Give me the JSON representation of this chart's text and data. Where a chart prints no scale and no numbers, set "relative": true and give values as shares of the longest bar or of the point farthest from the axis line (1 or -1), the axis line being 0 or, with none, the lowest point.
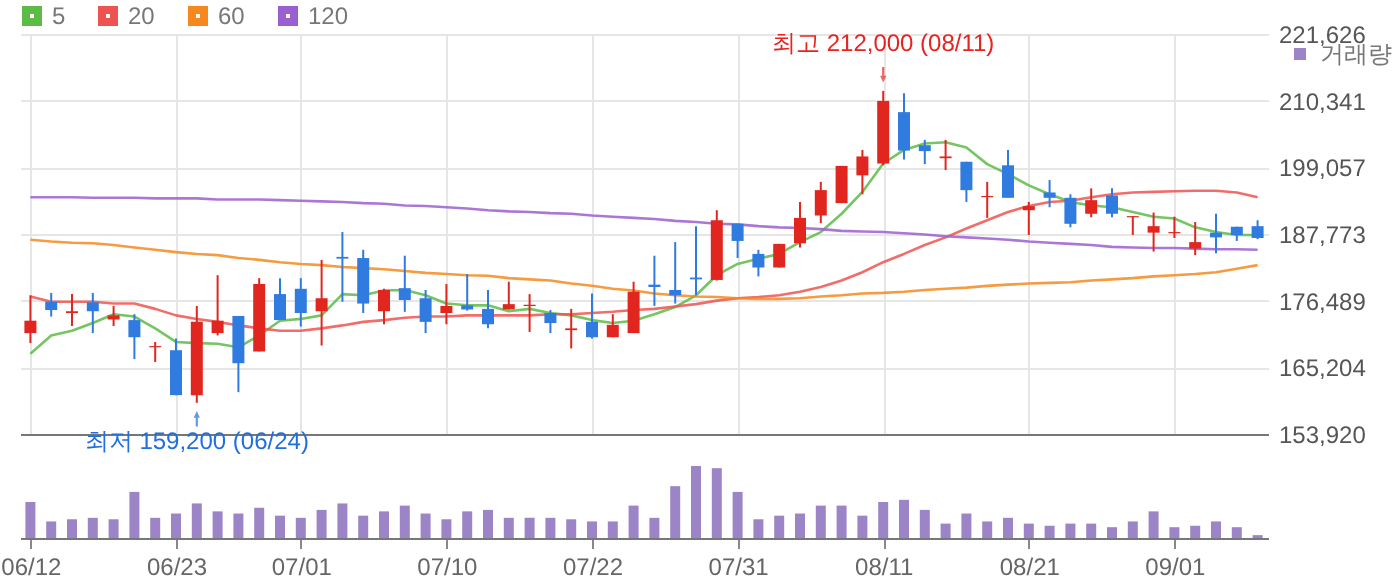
{
  "chart_data": [
    {
      "type": "candlestick",
      "categories": [
        null,
        null,
        null,
        null,
        null,
        null,
        null,
        null,
        null,
        null,
        null,
        null,
        null,
        null,
        null,
        null,
        null,
        null,
        null,
        null,
        null,
        null,
        null,
        null,
        null,
        null,
        null,
        null,
        null,
        null,
        null,
        null,
        null,
        null,
        null,
        null,
        null,
        null,
        null,
        null,
        null,
        null,
        null,
        null,
        null,
        null,
        null,
        null,
        null,
        null,
        null,
        null,
        null,
        null,
        null,
        null,
        null,
        null,
        null,
        null
      ],
      "ohlc": [
        [
          171000,
          177400,
          169300,
          173100
        ],
        [
          176300,
          177800,
          173800,
          174900
        ],
        [
          174400,
          177600,
          172200,
          174700
        ],
        [
          176200,
          177800,
          171000,
          174700
        ],
        [
          173300,
          175600,
          172200,
          174000
        ],
        [
          173200,
          174200,
          166600,
          170300
        ],
        [
          168600,
          169500,
          166100,
          168800
        ],
        [
          168100,
          170100,
          160500,
          160500
        ],
        [
          160500,
          175600,
          159200,
          172900
        ],
        [
          171000,
          180800,
          170600,
          173100
        ],
        [
          173900,
          173900,
          161000,
          165900
        ],
        [
          167900,
          180300,
          167900,
          179300
        ],
        [
          177600,
          180300,
          173200,
          173200
        ],
        [
          178500,
          180300,
          172100,
          174400
        ],
        [
          174700,
          183400,
          168900,
          176900
        ],
        [
          183900,
          188100,
          176300,
          183600
        ],
        [
          183700,
          185100,
          174400,
          176000
        ],
        [
          174700,
          178500,
          172500,
          178300
        ],
        [
          178600,
          184100,
          174600,
          176600
        ],
        [
          176900,
          178300,
          171000,
          172900
        ],
        [
          174400,
          179300,
          172500,
          175600
        ],
        [
          175700,
          181000,
          174800,
          175000
        ],
        [
          175100,
          178300,
          171800,
          172500
        ],
        [
          175000,
          179700,
          175000,
          175900
        ],
        [
          175600,
          177600,
          171200,
          175800
        ],
        [
          174400,
          174900,
          171000,
          172700
        ],
        [
          171500,
          175100,
          168400,
          171800
        ],
        [
          172900,
          177700,
          170100,
          170300
        ],
        [
          170300,
          174200,
          170300,
          172400
        ],
        [
          171000,
          179700,
          171000,
          178000
        ],
        [
          179200,
          184100,
          175600,
          178800
        ],
        [
          178300,
          186400,
          176000,
          177400
        ],
        [
          180400,
          189100,
          177400,
          180100
        ],
        [
          180000,
          191800,
          179900,
          190100
        ],
        [
          189500,
          189500,
          183700,
          186600
        ],
        [
          184400,
          185100,
          180600,
          182100
        ],
        [
          182100,
          186100,
          182100,
          186100
        ],
        [
          186200,
          193200,
          185500,
          190500
        ],
        [
          190900,
          196600,
          189600,
          195200
        ],
        [
          193000,
          199300,
          193000,
          199300
        ],
        [
          197700,
          202000,
          194500,
          200900
        ],
        [
          199700,
          212000,
          199400,
          210300
        ],
        [
          208400,
          211600,
          200400,
          201900
        ],
        [
          202800,
          203700,
          199600,
          201800
        ],
        [
          200600,
          203700,
          198600,
          200900
        ],
        [
          200000,
          200000,
          193200,
          195200
        ],
        [
          194000,
          196600,
          190500,
          194200
        ],
        [
          199400,
          202000,
          193900,
          193900
        ],
        [
          191800,
          193200,
          187600,
          192500
        ],
        [
          194800,
          196900,
          192300,
          193900
        ],
        [
          193900,
          194500,
          188900,
          189500
        ],
        [
          191200,
          195500,
          190600,
          193500
        ],
        [
          194300,
          195500,
          190600,
          191200
        ],
        [
          190600,
          190800,
          187600,
          190800
        ],
        [
          188000,
          191400,
          184800,
          189100
        ],
        [
          187900,
          190700,
          187100,
          188100
        ],
        [
          185300,
          189800,
          184200,
          186400
        ],
        [
          188000,
          191200,
          184500,
          187200
        ],
        [
          189000,
          189000,
          186600,
          187600
        ],
        [
          189100,
          190100,
          186900,
          187100
        ]
      ],
      "colors": [
        "#e0261f",
        "#2f7be0",
        "#e0261f",
        "#2f7be0",
        "#e0261f",
        "#2f7be0",
        "#e0261f",
        "#2f7be0",
        "#e0261f",
        "#e0261f",
        "#2f7be0",
        "#e0261f",
        "#2f7be0",
        "#2f7be0",
        "#e0261f",
        "#2f7be0",
        "#2f7be0",
        "#e0261f",
        "#2f7be0",
        "#2f7be0",
        "#e0261f",
        "#2f7be0",
        "#2f7be0",
        "#e0261f",
        "#e0261f",
        "#2f7be0",
        "#e0261f",
        "#2f7be0",
        "#e0261f",
        "#e0261f",
        "#2f7be0",
        "#2f7be0",
        "#2f7be0",
        "#e0261f",
        "#2f7be0",
        "#2f7be0",
        "#e0261f",
        "#e0261f",
        "#e0261f",
        "#e0261f",
        "#e0261f",
        "#e0261f",
        "#2f7be0",
        "#2f7be0",
        "#e0261f",
        "#2f7be0",
        "#e0261f",
        "#2f7be0",
        "#e0261f",
        "#2f7be0",
        "#2f7be0",
        "#e0261f",
        "#2f7be0",
        "#e0261f",
        "#e0261f",
        "#e0261f",
        "#e0261f",
        "#2f7be0",
        "#2f7be0",
        "#2f7be0"
      ],
      "series": [
        {
          "name": "5",
          "type": "line",
          "color": "#5dbb46",
          "values": [
            167500,
            170600,
            171400,
            172700,
            174200,
            173800,
            171800,
            169500,
            169300,
            169200,
            168600,
            170600,
            173100,
            173400,
            174000,
            177600,
            177400,
            178200,
            178300,
            177400,
            176000,
            175700,
            175700,
            174700,
            175100,
            174400,
            174000,
            173200,
            172700,
            173100,
            174200,
            175400,
            177400,
            180800,
            182700,
            183600,
            184400,
            186400,
            188100,
            191200,
            194900,
            199700,
            202000,
            203100,
            203300,
            202400,
            199600,
            197900,
            196000,
            194500,
            193200,
            192600,
            192300,
            191500,
            190700,
            190400,
            188900,
            188100,
            187600,
            187600
          ]
        },
        {
          "name": "20",
          "type": "line",
          "color": "#ef5350",
          "values": [
            177200,
            176300,
            176300,
            176300,
            176000,
            176000,
            175100,
            174000,
            173400,
            172900,
            172300,
            171800,
            171400,
            171400,
            171800,
            172300,
            172900,
            173200,
            173600,
            173800,
            173800,
            174000,
            174000,
            174000,
            174000,
            174200,
            174200,
            174400,
            174600,
            174900,
            175100,
            175500,
            175900,
            176500,
            176900,
            177100,
            177400,
            178000,
            178800,
            179900,
            181300,
            183000,
            184400,
            185900,
            187200,
            188700,
            190100,
            191500,
            192500,
            193200,
            193400,
            194000,
            194500,
            194800,
            194900,
            195000,
            195100,
            195100,
            194800,
            194000
          ]
        },
        {
          "name": "60",
          "type": "line",
          "color": "#f5891f",
          "values": [
            186800,
            186500,
            186300,
            186200,
            185900,
            185500,
            185100,
            184700,
            184400,
            184200,
            183700,
            183400,
            183000,
            182700,
            182500,
            182200,
            182000,
            181800,
            181500,
            181200,
            181000,
            180800,
            180700,
            180300,
            180100,
            179900,
            179400,
            179000,
            178500,
            178200,
            177700,
            177400,
            177200,
            177100,
            176900,
            176800,
            176800,
            176900,
            177200,
            177400,
            177700,
            177800,
            178000,
            178300,
            178500,
            178700,
            179000,
            179200,
            179400,
            179500,
            179600,
            179900,
            180100,
            180300,
            180600,
            180800,
            181000,
            181300,
            181900,
            182500
          ]
        },
        {
          "name": "120",
          "type": "line",
          "color": "#9c5fd0",
          "values": [
            194000,
            194000,
            194000,
            193900,
            193900,
            193900,
            193800,
            193800,
            193800,
            193600,
            193600,
            193600,
            193500,
            193400,
            193300,
            193200,
            193000,
            192900,
            192600,
            192500,
            192300,
            192100,
            191800,
            191600,
            191500,
            191300,
            191200,
            190900,
            190700,
            190500,
            190300,
            190000,
            189800,
            189500,
            189400,
            189100,
            188900,
            188800,
            188600,
            188300,
            188200,
            188100,
            187900,
            187700,
            187400,
            187200,
            187000,
            186800,
            186500,
            186300,
            186100,
            185900,
            185600,
            185500,
            185400,
            185400,
            185300,
            185200,
            185200,
            185100
          ]
        }
      ],
      "ylim": [
        153920,
        221626
      ],
      "yticks": [
        {
          "value": 153920,
          "label": "153,920"
        },
        {
          "value": 165204,
          "label": "165,204"
        },
        {
          "value": 176489,
          "label": "176,489"
        },
        {
          "value": 187773,
          "label": "187,773"
        },
        {
          "value": 199057,
          "label": "199,057"
        },
        {
          "value": 210341,
          "label": "210,341"
        },
        {
          "value": 221626,
          "label": "221,626"
        }
      ],
      "grid": true,
      "legend": "top left",
      "tick_labels": "y",
      "annotations": [
        "최고 212,000 (08/11)",
        "최저 159,200 (06/24)"
      ]
    },
    {
      "type": "bar",
      "categories": [
        "06/12",
        null,
        null,
        null,
        null,
        null,
        null,
        "06/23",
        null,
        null,
        null,
        null,
        null,
        "07/01",
        null,
        null,
        null,
        null,
        null,
        null,
        "07/10",
        null,
        null,
        null,
        null,
        null,
        null,
        "07/22",
        null,
        null,
        null,
        null,
        null,
        null,
        "07/31",
        null,
        null,
        null,
        null,
        null,
        null,
        "08/11",
        null,
        null,
        null,
        null,
        null,
        null,
        "08/21",
        null,
        null,
        null,
        null,
        null,
        null,
        "09/01",
        null,
        null,
        null,
        null
      ],
      "series": [
        {
          "name": "거래량",
          "color": "#9b85c6",
          "values": [
            0.5,
            0.23,
            0.26,
            0.28,
            0.26,
            0.64,
            0.28,
            0.34,
            0.48,
            0.37,
            0.34,
            0.42,
            0.31,
            0.28,
            0.39,
            0.48,
            0.31,
            0.37,
            0.45,
            0.34,
            0.26,
            0.37,
            0.39,
            0.28,
            0.28,
            0.28,
            0.26,
            0.23,
            0.23,
            0.45,
            0.28,
            0.72,
            1,
            0.97,
            0.64,
            0.26,
            0.31,
            0.34,
            0.45,
            0.45,
            0.31,
            0.5,
            0.53,
            0.39,
            0.2,
            0.34,
            0.23,
            0.28,
            0.2,
            0.17,
            0.2,
            0.2,
            0.15,
            0.23,
            0.37,
            0.15,
            0.17,
            0.23,
            0.15,
            0.04
          ]
        }
      ],
      "relative": true,
      "legend": "top right",
      "tick_labels": "x"
    }
  ]
}
